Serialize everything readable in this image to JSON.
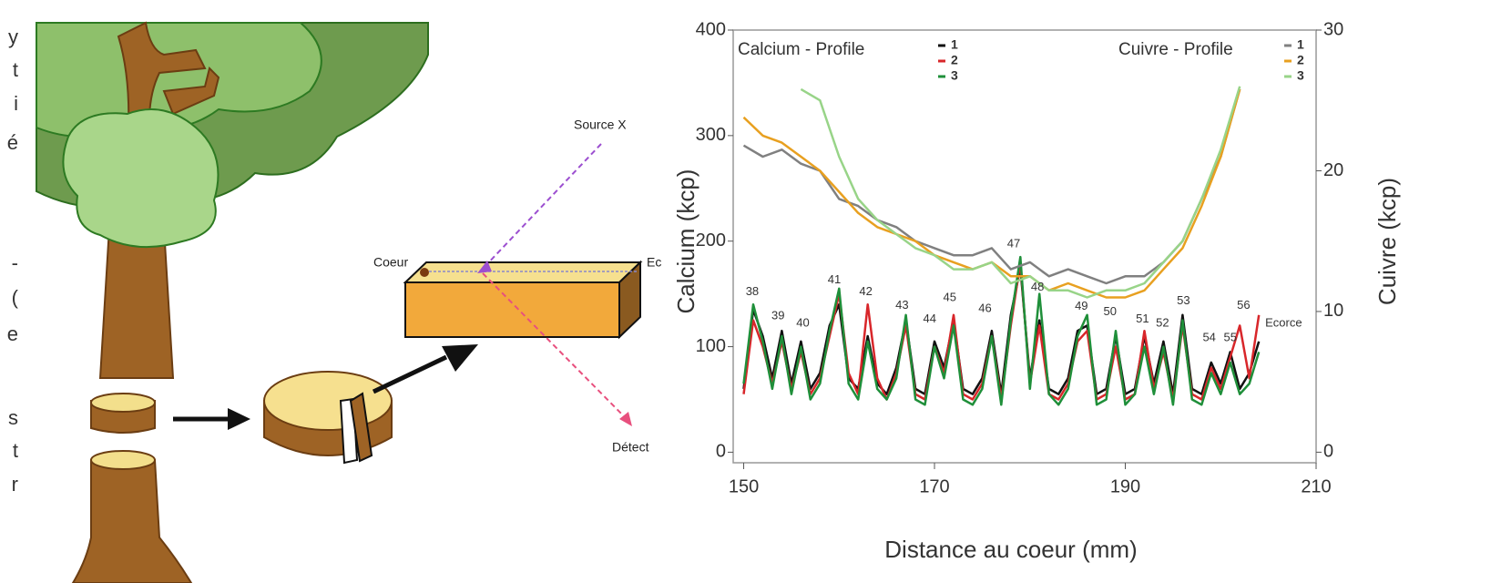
{
  "margin_fragments": [
    "y",
    "t",
    "i",
    "é",
    "-",
    "(",
    "e",
    "s",
    "t",
    "r"
  ],
  "diagram": {
    "labels": {
      "source": "Source X",
      "coeur": "Coeur",
      "ecorce": "Ec",
      "detecteur": "Détect"
    }
  },
  "chart_data": {
    "type": "line",
    "xlabel": "Distance au coeur (mm)",
    "ylabel": "Calcium (kcp)",
    "y2label": "Cuivre (kcp)",
    "legend_titles": [
      "Calcium - Profile",
      "Cuivre - Profile"
    ],
    "xlim": [
      148.9,
      210
    ],
    "xticks": [
      150,
      170,
      190,
      210
    ],
    "ylim": [
      -10,
      400
    ],
    "yticks": [
      0,
      100,
      200,
      300,
      400
    ],
    "y2lim": [
      -0.75,
      30
    ],
    "y2ticks": [
      0,
      10,
      20,
      30
    ],
    "x": [
      150,
      151,
      152,
      153,
      154,
      155,
      156,
      157,
      158,
      159,
      160,
      161,
      162,
      163,
      164,
      165,
      166,
      167,
      168,
      169,
      170,
      171,
      172,
      173,
      174,
      175,
      176,
      177,
      178,
      179,
      180,
      181,
      182,
      183,
      184,
      185,
      186,
      187,
      188,
      189,
      190,
      191,
      192,
      193,
      194,
      195,
      196,
      197,
      198,
      199,
      200,
      201,
      202,
      203,
      204
    ],
    "series": [
      {
        "name": "1",
        "group": 0,
        "color": "#111111",
        "values": [
          60,
          135,
          110,
          70,
          115,
          65,
          105,
          60,
          75,
          120,
          140,
          70,
          60,
          110,
          65,
          55,
          80,
          125,
          60,
          55,
          105,
          80,
          125,
          60,
          55,
          70,
          115,
          55,
          130,
          175,
          70,
          125,
          60,
          55,
          70,
          115,
          120,
          55,
          60,
          110,
          55,
          60,
          110,
          65,
          105,
          55,
          130,
          60,
          55,
          85,
          65,
          95,
          60,
          75,
          105
        ]
      },
      {
        "name": "2",
        "group": 0,
        "color": "#d8262a",
        "values": [
          55,
          125,
          100,
          65,
          105,
          60,
          95,
          55,
          70,
          110,
          150,
          75,
          55,
          140,
          70,
          50,
          75,
          120,
          55,
          50,
          100,
          75,
          130,
          55,
          50,
          65,
          110,
          50,
          120,
          180,
          65,
          120,
          55,
          50,
          65,
          105,
          115,
          50,
          55,
          100,
          50,
          55,
          115,
          60,
          95,
          50,
          120,
          55,
          50,
          80,
          60,
          90,
          120,
          70,
          130
        ]
      },
      {
        "name": "3",
        "group": 0,
        "color": "#1f8f3a",
        "values": [
          65,
          140,
          105,
          60,
          110,
          55,
          100,
          50,
          65,
          115,
          155,
          65,
          50,
          105,
          60,
          50,
          70,
          130,
          50,
          45,
          100,
          70,
          120,
          50,
          45,
          60,
          110,
          45,
          125,
          185,
          60,
          150,
          55,
          45,
          60,
          110,
          130,
          45,
          50,
          115,
          45,
          55,
          100,
          55,
          100,
          45,
          125,
          50,
          45,
          75,
          55,
          85,
          55,
          65,
          95
        ]
      },
      {
        "name": "1",
        "group": 1,
        "axis": "y2",
        "color": "#808080",
        "x": [
          150,
          152,
          154,
          156,
          158,
          160,
          162,
          164,
          166,
          168,
          170,
          172,
          174,
          176,
          178,
          180,
          182,
          184,
          186,
          188,
          190,
          192,
          194,
          196,
          198,
          200,
          202
        ],
        "values": [
          21.8,
          21,
          21.5,
          20.5,
          20,
          18,
          17.5,
          16.5,
          16,
          15,
          14.5,
          14,
          14,
          14.5,
          13,
          13.5,
          12.5,
          13,
          12.5,
          12,
          12.5,
          12.5,
          13.5,
          15,
          18,
          21,
          25.8
        ]
      },
      {
        "name": "2",
        "group": 1,
        "axis": "y2",
        "color": "#e8a020",
        "x": [
          150,
          152,
          154,
          156,
          158,
          160,
          162,
          164,
          166,
          168,
          170,
          172,
          174,
          176,
          178,
          180,
          182,
          184,
          186,
          188,
          190,
          192,
          194,
          196,
          198,
          200,
          202
        ],
        "values": [
          23.8,
          22.5,
          22,
          21,
          20,
          18.5,
          17,
          16,
          15.5,
          15,
          14,
          13.5,
          13,
          13.5,
          12.5,
          12.5,
          11.5,
          12,
          11.5,
          11,
          11,
          11.5,
          13,
          14.5,
          17.5,
          21,
          25.8
        ]
      },
      {
        "name": "3",
        "group": 1,
        "axis": "y2",
        "color": "#98d488",
        "x": [
          150,
          152,
          154,
          156,
          158,
          160,
          162,
          164,
          166,
          168,
          170,
          172,
          174,
          176,
          178,
          180,
          182,
          184,
          186,
          188,
          190,
          192,
          194,
          196,
          198,
          200,
          202
        ],
        "values": [
          null,
          null,
          null,
          25.8,
          25,
          21,
          18,
          16.5,
          15.5,
          14.5,
          14,
          13,
          13,
          13.5,
          12,
          12.5,
          11.5,
          11.5,
          11,
          11.5,
          11.5,
          12,
          13.5,
          15,
          18,
          21.5,
          26
        ]
      }
    ],
    "annotations": [
      {
        "text": "38",
        "x": 150.9,
        "y": 152
      },
      {
        "text": "39",
        "x": 153.6,
        "y": 129
      },
      {
        "text": "40",
        "x": 156.2,
        "y": 122
      },
      {
        "text": "41",
        "x": 159.5,
        "y": 163
      },
      {
        "text": "42",
        "x": 162.8,
        "y": 152
      },
      {
        "text": "43",
        "x": 166.6,
        "y": 139
      },
      {
        "text": "44",
        "x": 169.5,
        "y": 126
      },
      {
        "text": "45",
        "x": 171.6,
        "y": 146
      },
      {
        "text": "46",
        "x": 175.3,
        "y": 136
      },
      {
        "text": "47",
        "x": 178.3,
        "y": 197
      },
      {
        "text": "48",
        "x": 180.8,
        "y": 156
      },
      {
        "text": "49",
        "x": 185.4,
        "y": 138
      },
      {
        "text": "50",
        "x": 188.4,
        "y": 133
      },
      {
        "text": "51",
        "x": 191.8,
        "y": 126
      },
      {
        "text": "52",
        "x": 193.9,
        "y": 122
      },
      {
        "text": "53",
        "x": 196.1,
        "y": 143
      },
      {
        "text": "54",
        "x": 198.8,
        "y": 108
      },
      {
        "text": "55",
        "x": 201.0,
        "y": 108
      },
      {
        "text": "56",
        "x": 202.4,
        "y": 139
      },
      {
        "text": "Ecorce",
        "x": 206.6,
        "y": 122
      }
    ]
  }
}
